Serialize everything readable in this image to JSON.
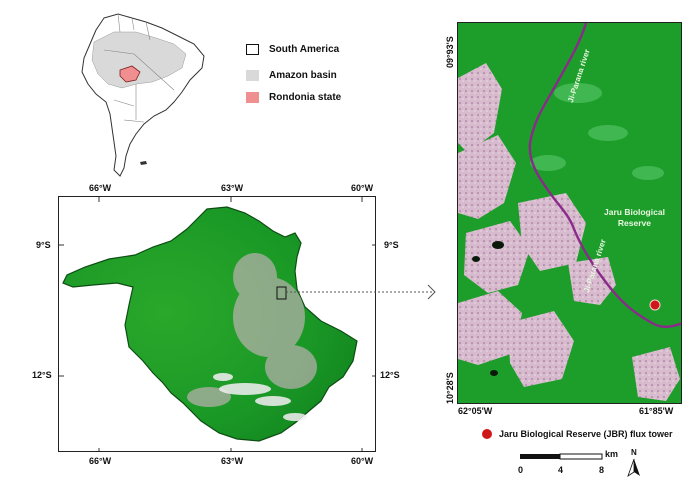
{
  "inset_legend": {
    "south_america": "South America",
    "amazon_basin": "Amazon basin",
    "rondonia_state": "Rondonia state"
  },
  "colors": {
    "amazon_basin": "#d9d9d9",
    "rondonia_state": "#ef8f8f",
    "forest_green": "#1d9e2a",
    "river": "#8a2a8a",
    "tower_marker": "#d01717"
  },
  "state_map": {
    "top_ticks": [
      "66°W",
      "63°W",
      "60°W"
    ],
    "bottom_ticks": [
      "66°W",
      "63°W",
      "60°W"
    ],
    "left_ticks": [
      "9°S",
      "12°S"
    ],
    "right_ticks": [
      "9°S",
      "12°S"
    ]
  },
  "detail_map": {
    "lat_top": "09°93'S",
    "lat_bottom": "10°28'S",
    "lon_left": "62°05'W",
    "lon_right": "61°85'W",
    "river_label_top": "Ji-Parana river",
    "river_label_mid": "Ji-Parana river",
    "reserve_label_line1": "Jaru Biological",
    "reserve_label_line2": "Reserve"
  },
  "tower_legend": "Jaru Biological Reserve (JBR) flux tower",
  "scale_bar": {
    "unit": "km",
    "labels": [
      "0",
      "4",
      "8"
    ]
  },
  "north_arrow": "N"
}
